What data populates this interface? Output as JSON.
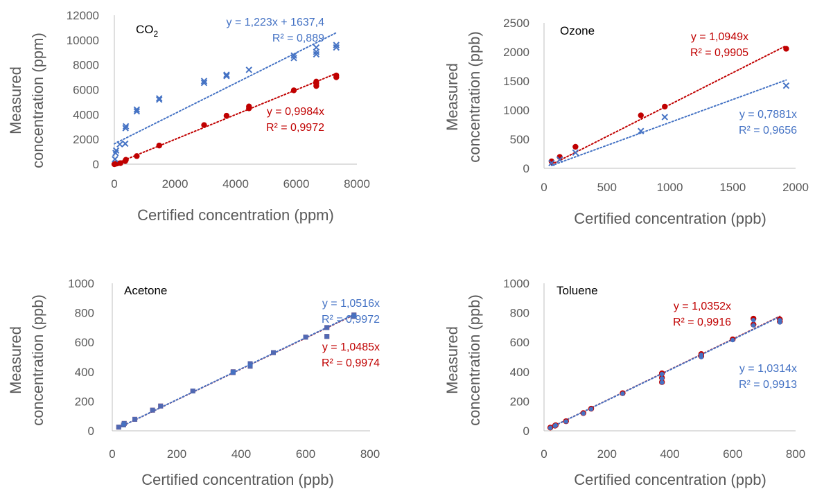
{
  "colors": {
    "red": "#c00000",
    "blue": "#4472c4",
    "axis": "#bfbfbf",
    "text": "#595959"
  },
  "chart_data": [
    {
      "type": "scatter",
      "title": "CO",
      "title_subscript": "2",
      "xlabel": "Certified concentration (ppm)",
      "ylabel": "Measured concentration (ppm)",
      "ylabel_lines": [
        "Measured",
        "concentration (ppm)"
      ],
      "xlim": [
        0,
        8000
      ],
      "ylim": [
        0,
        12000
      ],
      "xticks": [
        "0",
        "2000",
        "4000",
        "6000",
        "8000"
      ],
      "yticks": [
        "0",
        "2000",
        "4000",
        "6000",
        "8000",
        "10000",
        "12000"
      ],
      "grid": false,
      "series": [
        {
          "marker": "circle",
          "color": "#c00000",
          "points": [
            [
              0,
              0
            ],
            [
              60,
              40
            ],
            [
              100,
              60
            ],
            [
              200,
              80
            ],
            [
              360,
              250
            ],
            [
              380,
              350
            ],
            [
              740,
              650
            ],
            [
              1480,
              1500
            ],
            [
              2960,
              3150
            ],
            [
              3700,
              3900
            ],
            [
              4440,
              4500
            ],
            [
              4440,
              4650
            ],
            [
              5920,
              5950
            ],
            [
              6660,
              6300
            ],
            [
              6660,
              6500
            ],
            [
              6660,
              6650
            ],
            [
              7320,
              7000
            ],
            [
              7320,
              7150
            ]
          ],
          "trendline": {
            "slope": 0.9984,
            "intercept": 0,
            "x_range": [
              0,
              7320
            ]
          },
          "equation_lines": [
            "y = 0,9984x",
            "R² = 0,9972"
          ]
        },
        {
          "marker": "x",
          "color": "#4472c4",
          "points": [
            [
              20,
              400
            ],
            [
              40,
              900
            ],
            [
              60,
              1100
            ],
            [
              180,
              1600
            ],
            [
              360,
              1650
            ],
            [
              370,
              2900
            ],
            [
              380,
              3050
            ],
            [
              740,
              4250
            ],
            [
              740,
              4400
            ],
            [
              1480,
              5200
            ],
            [
              1480,
              5300
            ],
            [
              2960,
              6550
            ],
            [
              2960,
              6700
            ],
            [
              3700,
              7100
            ],
            [
              3700,
              7200
            ],
            [
              4440,
              7600
            ],
            [
              5920,
              8550
            ],
            [
              5920,
              8750
            ],
            [
              6660,
              8850
            ],
            [
              6660,
              9050
            ],
            [
              6660,
              9400
            ],
            [
              7320,
              9400
            ],
            [
              7320,
              9600
            ]
          ],
          "trendline": {
            "slope": 1.223,
            "intercept": 1637.4,
            "x_range": [
              0,
              7320
            ]
          },
          "equation_lines": [
            "y = 1,223x + 1637,4",
            "R² = 0,889"
          ]
        }
      ]
    },
    {
      "type": "scatter",
      "title": "Ozone",
      "title_subscript": "",
      "xlabel": "Certified concentration (ppb)",
      "ylabel": "Measured concentration (ppb)",
      "ylabel_lines": [
        "Measured",
        "concentration (ppb)"
      ],
      "xlim": [
        0,
        2000
      ],
      "ylim": [
        0,
        2500
      ],
      "xticks": [
        "0",
        "500",
        "1000",
        "1500",
        "2000"
      ],
      "yticks": [
        "0",
        "500",
        "1000",
        "1500",
        "2000",
        "2500"
      ],
      "grid": false,
      "series": [
        {
          "marker": "circle",
          "color": "#c00000",
          "points": [
            [
              60,
              120
            ],
            [
              125,
              195
            ],
            [
              250,
              370
            ],
            [
              770,
              910
            ],
            [
              960,
              1060
            ],
            [
              1925,
              2055
            ]
          ],
          "trendline": {
            "slope": 1.0949,
            "intercept": 0,
            "x_range": [
              60,
              1925
            ]
          },
          "equation_lines": [
            "y = 1,0949x",
            "R² = 0,9905"
          ]
        },
        {
          "marker": "x",
          "color": "#4472c4",
          "points": [
            [
              60,
              90
            ],
            [
              125,
              150
            ],
            [
              250,
              270
            ],
            [
              770,
              640
            ],
            [
              960,
              880
            ],
            [
              1925,
              1420
            ]
          ],
          "trendline": {
            "slope": 0.7881,
            "intercept": 0,
            "x_range": [
              60,
              1925
            ]
          },
          "equation_lines": [
            "y = 0,7881x",
            "R² = 0,9656"
          ]
        }
      ]
    },
    {
      "type": "scatter",
      "title": "Acetone",
      "title_subscript": "",
      "xlabel": "Certified concentration (ppb)",
      "ylabel": "Measured concentration (ppb)",
      "ylabel_lines": [
        "Measured",
        "concentration (ppb)"
      ],
      "xlim": [
        0,
        800
      ],
      "ylim": [
        0,
        1000
      ],
      "xticks": [
        "0",
        "200",
        "400",
        "600",
        "800"
      ],
      "yticks": [
        "0",
        "200",
        "400",
        "600",
        "800",
        "1000"
      ],
      "grid": false,
      "series": [
        {
          "marker": "square",
          "color": "#c00000",
          "points": [
            [
              20,
              25
            ],
            [
              35,
              40
            ],
            [
              37,
              50
            ],
            [
              70,
              78
            ],
            [
              125,
              140
            ],
            [
              150,
              168
            ],
            [
              250,
              270
            ],
            [
              375,
              400
            ],
            [
              375,
              395
            ],
            [
              428,
              438
            ],
            [
              428,
              455
            ],
            [
              500,
              530
            ],
            [
              600,
              635
            ],
            [
              666,
              640
            ],
            [
              666,
              700
            ],
            [
              750,
              775
            ],
            [
              750,
              785
            ]
          ],
          "trendline": {
            "slope": 1.0485,
            "intercept": 0,
            "x_range": [
              15,
              750
            ]
          },
          "equation_lines": [
            "y = 1,0485x",
            "R² = 0,9974"
          ]
        },
        {
          "marker": "square",
          "color": "#4472c4",
          "points": [
            [
              20,
              25
            ],
            [
              35,
              40
            ],
            [
              37,
              50
            ],
            [
              70,
              78
            ],
            [
              125,
              140
            ],
            [
              150,
              168
            ],
            [
              250,
              270
            ],
            [
              375,
              400
            ],
            [
              375,
              395
            ],
            [
              428,
              438
            ],
            [
              428,
              455
            ],
            [
              500,
              530
            ],
            [
              600,
              635
            ],
            [
              666,
              640
            ],
            [
              666,
              700
            ],
            [
              750,
              775
            ],
            [
              750,
              785
            ]
          ],
          "trendline": {
            "slope": 1.0516,
            "intercept": 0,
            "x_range": [
              15,
              750
            ]
          },
          "equation_lines": [
            "y = 1,0516x",
            "R² = 0,9972"
          ]
        }
      ]
    },
    {
      "type": "scatter",
      "title": "Toluene",
      "title_subscript": "",
      "xlabel": "Certified concentration (ppb)",
      "ylabel": "Measured concentration (ppb)",
      "ylabel_lines": [
        "Measured",
        "concentration (ppb)"
      ],
      "xlim": [
        0,
        800
      ],
      "ylim": [
        0,
        1000
      ],
      "xticks": [
        "0",
        "200",
        "400",
        "600",
        "800"
      ],
      "yticks": [
        "0",
        "200",
        "400",
        "600",
        "800",
        "1000"
      ],
      "grid": false,
      "series": [
        {
          "marker": "circle",
          "color": "#c00000",
          "points": [
            [
              20,
              22
            ],
            [
              35,
              35
            ],
            [
              37,
              38
            ],
            [
              70,
              65
            ],
            [
              125,
              120
            ],
            [
              150,
              150
            ],
            [
              250,
              255
            ],
            [
              375,
              330
            ],
            [
              375,
              360
            ],
            [
              375,
              390
            ],
            [
              500,
              505
            ],
            [
              500,
              520
            ],
            [
              600,
              620
            ],
            [
              666,
              720
            ],
            [
              666,
              760
            ],
            [
              750,
              740
            ],
            [
              750,
              755
            ]
          ],
          "trendline": {
            "slope": 1.0352,
            "intercept": 0,
            "x_range": [
              15,
              750
            ]
          },
          "equation_lines": [
            "y = 1,0352x",
            "R² = 0,9916"
          ]
        },
        {
          "marker": "circle",
          "color": "#4472c4",
          "points": [
            [
              20,
              20
            ],
            [
              35,
              34
            ],
            [
              37,
              37
            ],
            [
              70,
              63
            ],
            [
              125,
              118
            ],
            [
              150,
              148
            ],
            [
              250,
              252
            ],
            [
              375,
              328
            ],
            [
              375,
              355
            ],
            [
              375,
              385
            ],
            [
              500,
              500
            ],
            [
              500,
              515
            ],
            [
              600,
              615
            ],
            [
              666,
              715
            ],
            [
              666,
              750
            ],
            [
              750,
              735
            ],
            [
              750,
              750
            ]
          ],
          "trendline": {
            "slope": 1.0314,
            "intercept": 0,
            "x_range": [
              15,
              750
            ]
          },
          "equation_lines": [
            "y = 1,0314x",
            "R² = 0,9913"
          ]
        }
      ]
    }
  ]
}
